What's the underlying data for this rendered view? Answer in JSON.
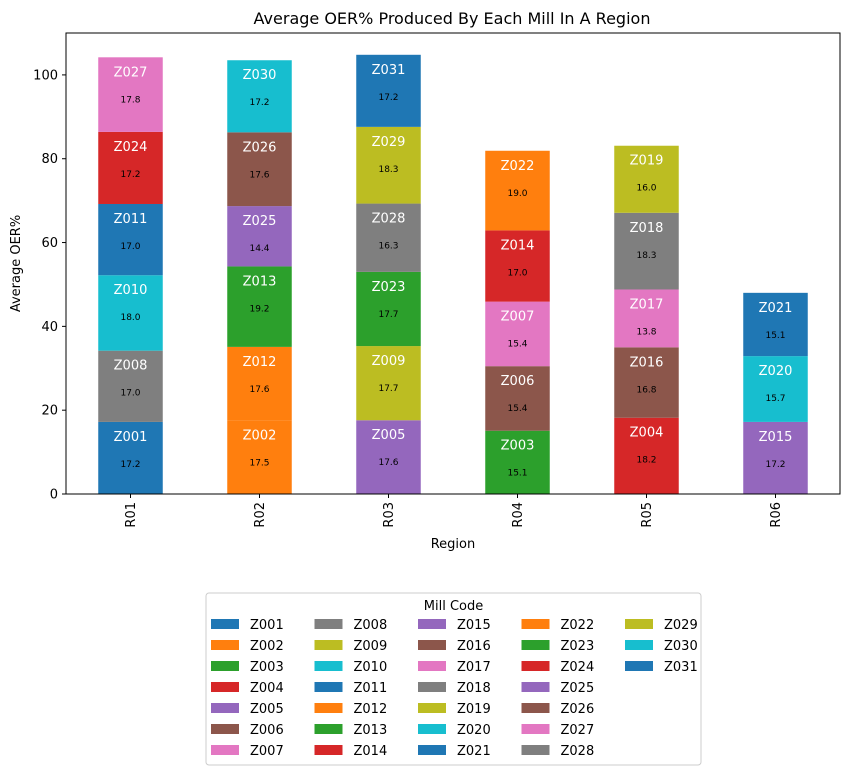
{
  "chart_data": {
    "type": "bar",
    "stacked": true,
    "title": "Average OER% Produced By Each Mill In A Region",
    "xlabel": "Region",
    "ylabel": "Average OER%",
    "ylim": [
      0,
      110
    ],
    "yticks": [
      0,
      20,
      40,
      60,
      80,
      100
    ],
    "grid": false,
    "legend_title": "Mill Code",
    "legend_placement": "bottom-center",
    "categories": [
      "R01",
      "R02",
      "R03",
      "R04",
      "R05",
      "R06"
    ],
    "series": [
      {
        "name": "Z001",
        "color": "#1f77b4",
        "values": [
          17.2,
          0,
          0,
          0,
          0,
          0
        ]
      },
      {
        "name": "Z002",
        "color": "#ff7f0e",
        "values": [
          0,
          17.5,
          0,
          0,
          0,
          0
        ]
      },
      {
        "name": "Z003",
        "color": "#2ca02c",
        "values": [
          0,
          0,
          0,
          15.1,
          0,
          0
        ]
      },
      {
        "name": "Z004",
        "color": "#d62728",
        "values": [
          0,
          0,
          0,
          0,
          18.2,
          0
        ]
      },
      {
        "name": "Z005",
        "color": "#9467bd",
        "values": [
          0,
          0,
          17.6,
          0,
          0,
          0
        ]
      },
      {
        "name": "Z006",
        "color": "#8c564b",
        "values": [
          0,
          0,
          0,
          15.4,
          0,
          0
        ]
      },
      {
        "name": "Z007",
        "color": "#e377c2",
        "values": [
          0,
          0,
          0,
          15.4,
          0,
          0
        ]
      },
      {
        "name": "Z008",
        "color": "#7f7f7f",
        "values": [
          17.0,
          0,
          0,
          0,
          0,
          0
        ]
      },
      {
        "name": "Z009",
        "color": "#bcbd22",
        "values": [
          0,
          0,
          17.7,
          0,
          0,
          0
        ]
      },
      {
        "name": "Z010",
        "color": "#17becf",
        "values": [
          18.0,
          0,
          0,
          0,
          0,
          0
        ]
      },
      {
        "name": "Z011",
        "color": "#1f77b4",
        "values": [
          17.0,
          0,
          0,
          0,
          0,
          0
        ]
      },
      {
        "name": "Z012",
        "color": "#ff7f0e",
        "values": [
          0,
          17.6,
          0,
          0,
          0,
          0
        ]
      },
      {
        "name": "Z013",
        "color": "#2ca02c",
        "values": [
          0,
          19.2,
          0,
          0,
          0,
          0
        ]
      },
      {
        "name": "Z014",
        "color": "#d62728",
        "values": [
          0,
          0,
          0,
          17.0,
          0,
          0
        ]
      },
      {
        "name": "Z015",
        "color": "#9467bd",
        "values": [
          0,
          0,
          0,
          0,
          0,
          17.2
        ]
      },
      {
        "name": "Z016",
        "color": "#8c564b",
        "values": [
          0,
          0,
          0,
          0,
          16.8,
          0
        ]
      },
      {
        "name": "Z017",
        "color": "#e377c2",
        "values": [
          0,
          0,
          0,
          0,
          13.8,
          0
        ]
      },
      {
        "name": "Z018",
        "color": "#7f7f7f",
        "values": [
          0,
          0,
          0,
          0,
          18.3,
          0
        ]
      },
      {
        "name": "Z019",
        "color": "#bcbd22",
        "values": [
          0,
          0,
          0,
          0,
          16.0,
          0
        ]
      },
      {
        "name": "Z020",
        "color": "#17becf",
        "values": [
          0,
          0,
          0,
          0,
          0,
          15.7
        ]
      },
      {
        "name": "Z021",
        "color": "#1f77b4",
        "values": [
          0,
          0,
          0,
          0,
          0,
          15.1
        ]
      },
      {
        "name": "Z022",
        "color": "#ff7f0e",
        "values": [
          0,
          0,
          0,
          19.0,
          0,
          0
        ]
      },
      {
        "name": "Z023",
        "color": "#2ca02c",
        "values": [
          0,
          0,
          17.7,
          0,
          0,
          0
        ]
      },
      {
        "name": "Z024",
        "color": "#d62728",
        "values": [
          17.2,
          0,
          0,
          0,
          0,
          0
        ]
      },
      {
        "name": "Z025",
        "color": "#9467bd",
        "values": [
          0,
          14.4,
          0,
          0,
          0,
          0
        ]
      },
      {
        "name": "Z026",
        "color": "#8c564b",
        "values": [
          0,
          17.6,
          0,
          0,
          0,
          0
        ]
      },
      {
        "name": "Z027",
        "color": "#e377c2",
        "values": [
          17.8,
          0,
          0,
          0,
          0,
          0
        ]
      },
      {
        "name": "Z028",
        "color": "#7f7f7f",
        "values": [
          0,
          0,
          16.3,
          0,
          0,
          0
        ]
      },
      {
        "name": "Z029",
        "color": "#bcbd22",
        "values": [
          0,
          0,
          18.3,
          0,
          0,
          0
        ]
      },
      {
        "name": "Z030",
        "color": "#17becf",
        "values": [
          0,
          17.2,
          0,
          0,
          0,
          0
        ]
      },
      {
        "name": "Z031",
        "color": "#1f77b4",
        "values": [
          0,
          0,
          17.2,
          0,
          0,
          0
        ]
      }
    ]
  }
}
